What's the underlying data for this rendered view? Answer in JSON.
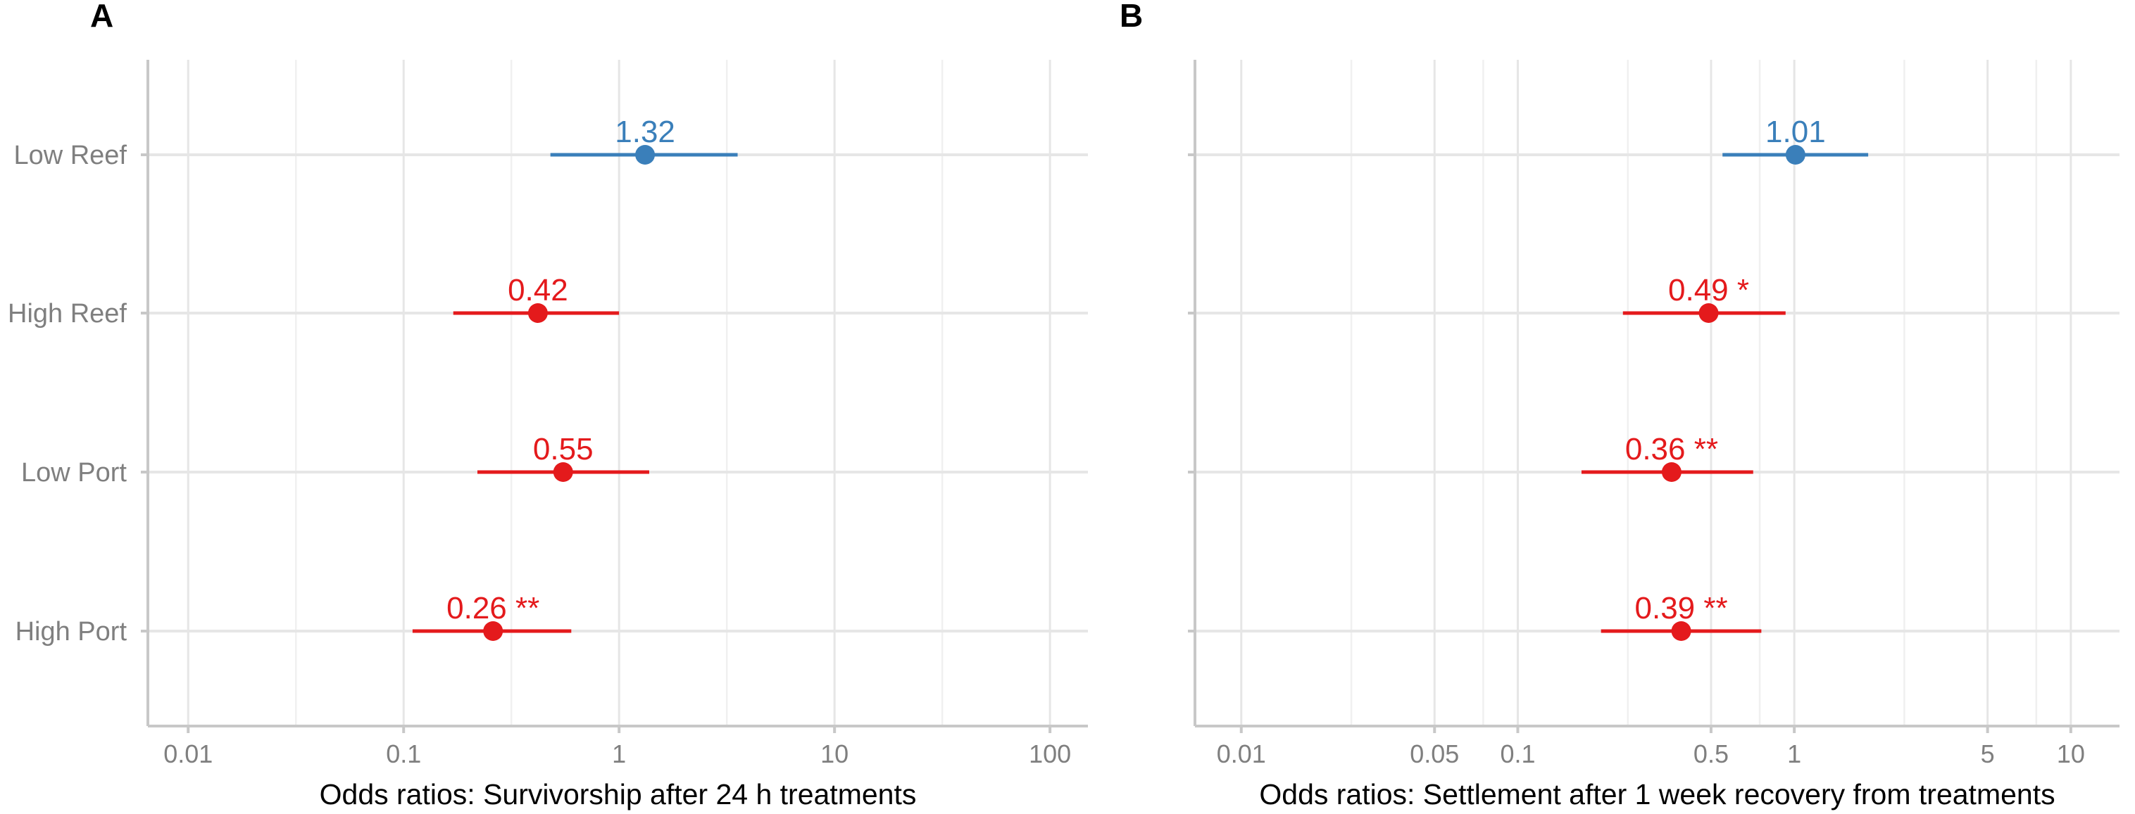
{
  "chart_data": [
    {
      "type": "scatter",
      "panel": "A",
      "xlabel": "Odds ratios: Survivorship after 24 h treatments",
      "x_scale": "log",
      "xlim": [
        0.0065,
        150
      ],
      "x_ticks": [
        "0.01",
        "0.1",
        "1",
        "10",
        "100"
      ],
      "x_tick_values": [
        0.01,
        0.1,
        1,
        10,
        100
      ],
      "x_minor_gridlines": [
        0.031623,
        0.31623,
        3.1623,
        31.623
      ],
      "grid": true,
      "categories": [
        "Low Reef",
        "High Reef",
        "Low Port",
        "High Port"
      ],
      "points": [
        {
          "category": "Low Reef",
          "estimate": 1.32,
          "ci_low": 0.48,
          "ci_high": 3.55,
          "label": "1.32",
          "color": "#3a7fba"
        },
        {
          "category": "High Reef",
          "estimate": 0.42,
          "ci_low": 0.17,
          "ci_high": 1.0,
          "label": "0.42",
          "color": "#e41a1c"
        },
        {
          "category": "Low Port",
          "estimate": 0.55,
          "ci_low": 0.22,
          "ci_high": 1.38,
          "label": "0.55",
          "color": "#e41a1c"
        },
        {
          "category": "High Port",
          "estimate": 0.26,
          "ci_low": 0.11,
          "ci_high": 0.6,
          "label": "0.26 **",
          "color": "#e41a1c"
        }
      ]
    },
    {
      "type": "scatter",
      "panel": "B",
      "xlabel": "Odds ratios: Settlement after 1 week recovery from treatments",
      "x_scale": "log",
      "xlim": [
        0.0068,
        15
      ],
      "x_ticks": [
        "0.01",
        "0.05",
        "0.1",
        "0.5",
        "1",
        "5",
        "10"
      ],
      "x_tick_values": [
        0.01,
        0.05,
        0.1,
        0.5,
        1,
        5,
        10
      ],
      "x_minor_gridlines": [
        0.025,
        0.075,
        0.25,
        0.75,
        2.5,
        7.5
      ],
      "grid": true,
      "categories": [
        "Low Reef",
        "High Reef",
        "Low Port",
        "High Port"
      ],
      "points": [
        {
          "category": "Low Reef",
          "estimate": 1.01,
          "ci_low": 0.55,
          "ci_high": 1.85,
          "label": "1.01",
          "color": "#3a7fba"
        },
        {
          "category": "High Reef",
          "estimate": 0.49,
          "ci_low": 0.24,
          "ci_high": 0.93,
          "label": "0.49 *",
          "color": "#e41a1c"
        },
        {
          "category": "Low Port",
          "estimate": 0.36,
          "ci_low": 0.17,
          "ci_high": 0.71,
          "label": "0.36 **",
          "color": "#e41a1c"
        },
        {
          "category": "High Port",
          "estimate": 0.39,
          "ci_low": 0.2,
          "ci_high": 0.76,
          "label": "0.39 **",
          "color": "#e41a1c"
        }
      ]
    }
  ]
}
